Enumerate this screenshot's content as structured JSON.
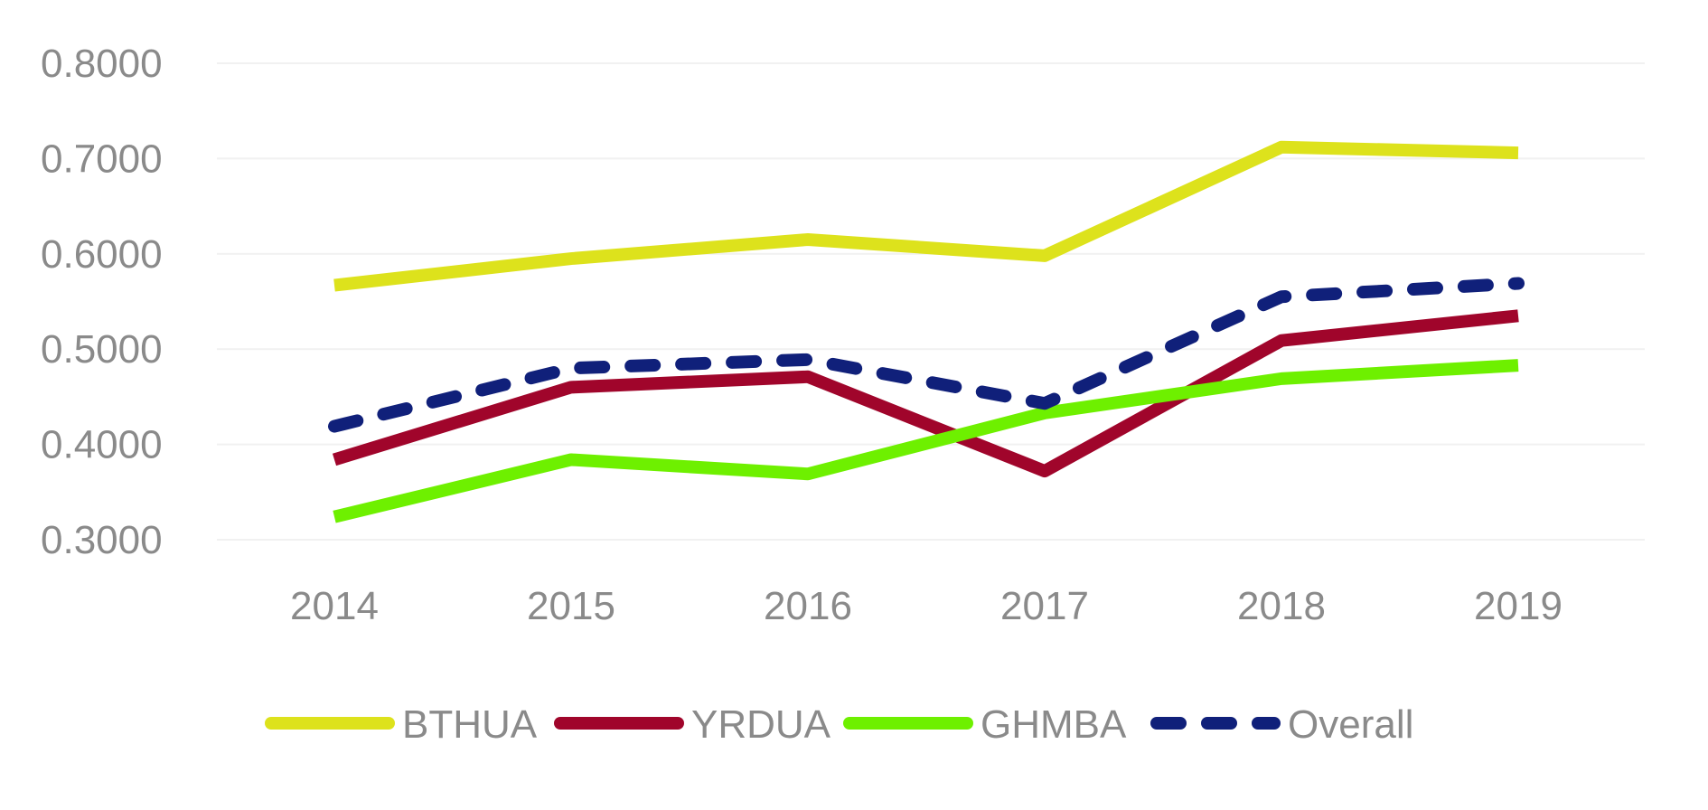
{
  "chart_data": {
    "type": "line",
    "title": "",
    "xlabel": "",
    "ylabel": "",
    "categories": [
      "2014",
      "2015",
      "2016",
      "2017",
      "2018",
      "2019"
    ],
    "y_ticks": [
      "0.8000",
      "0.7000",
      "0.6000",
      "0.5000",
      "0.4000",
      "0.3000"
    ],
    "ylim": [
      0.3,
      0.8
    ],
    "grid": true,
    "legend_position": "bottom",
    "series": [
      {
        "name": "BTHUA",
        "values": [
          0.567,
          0.595,
          0.615,
          0.598,
          0.712,
          0.706
        ],
        "color": "#dde21c",
        "dashed": false
      },
      {
        "name": "YRDUA",
        "values": [
          0.384,
          0.46,
          0.471,
          0.372,
          0.509,
          0.535
        ],
        "color": "#a0052b",
        "dashed": false
      },
      {
        "name": "GHMBA",
        "values": [
          0.324,
          0.384,
          0.369,
          0.433,
          0.469,
          0.483
        ],
        "color": "#6ef000",
        "dashed": false
      },
      {
        "name": "Overall",
        "values": [
          0.419,
          0.48,
          0.489,
          0.443,
          0.555,
          0.569
        ],
        "color": "#10207a",
        "dashed": true
      }
    ]
  }
}
